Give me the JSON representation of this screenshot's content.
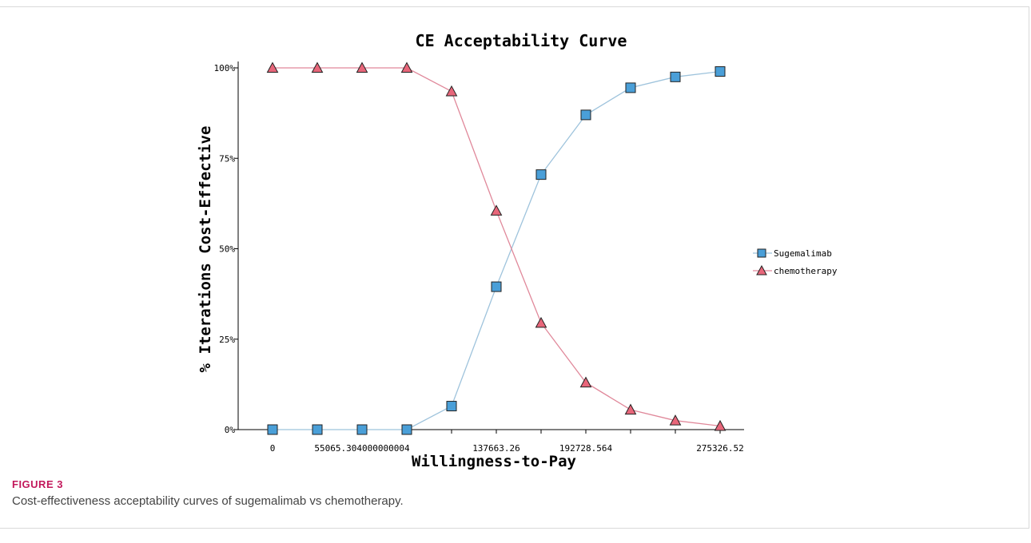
{
  "figure": {
    "label": "FIGURE 3",
    "caption": "Cost-effectiveness acceptability curves of sugemalimab vs chemotherapy."
  },
  "chart_data": {
    "type": "line",
    "title": "CE Acceptability Curve",
    "xlabel": "Willingness-to-Pay",
    "ylabel": "% Iterations Cost-Effective",
    "x": [
      0,
      27532.652,
      55065.304,
      82597.956,
      110130.608,
      137663.26,
      165195.912,
      192728.564,
      220261.216,
      247793.868,
      275326.52
    ],
    "x_tick_labels": [
      {
        "value": 0,
        "label": "0"
      },
      {
        "value": 55065.304,
        "label": "55065.304000000004"
      },
      {
        "value": 137663.26,
        "label": "137663.26"
      },
      {
        "value": 192728.564,
        "label": "192728.564"
      },
      {
        "value": 275326.52,
        "label": "275326.52"
      }
    ],
    "x_minor_ticks": [
      27532.652,
      82597.956,
      110130.608,
      165195.912,
      220261.216,
      247793.868
    ],
    "y_ticks": [
      {
        "value": 0,
        "label": "0%"
      },
      {
        "value": 25,
        "label": "25%"
      },
      {
        "value": 50,
        "label": "50%"
      },
      {
        "value": 75,
        "label": "75%"
      },
      {
        "value": 100,
        "label": "100%"
      }
    ],
    "xlim": [
      0,
      275326.52
    ],
    "ylim": [
      0,
      100
    ],
    "grid": false,
    "legend_position": "right",
    "series": [
      {
        "name": "Sugemalimab",
        "marker": "square",
        "color": "#4a9fd8",
        "line_color": "#9ec3dc",
        "values": [
          0,
          0,
          0,
          0,
          6.5,
          39.5,
          70.5,
          87.0,
          94.5,
          97.5,
          99.0
        ]
      },
      {
        "name": "chemotherapy",
        "marker": "triangle",
        "color": "#e8667a",
        "line_color": "#e0889a",
        "values": [
          100,
          100,
          100,
          100,
          93.5,
          60.5,
          29.5,
          13.0,
          5.5,
          2.5,
          1.0
        ]
      }
    ]
  }
}
